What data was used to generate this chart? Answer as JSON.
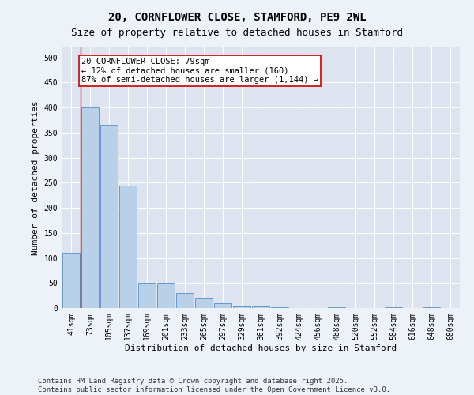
{
  "title": "20, CORNFLOWER CLOSE, STAMFORD, PE9 2WL",
  "subtitle": "Size of property relative to detached houses in Stamford",
  "xlabel": "Distribution of detached houses by size in Stamford",
  "ylabel": "Number of detached properties",
  "categories": [
    "41sqm",
    "73sqm",
    "105sqm",
    "137sqm",
    "169sqm",
    "201sqm",
    "233sqm",
    "265sqm",
    "297sqm",
    "329sqm",
    "361sqm",
    "392sqm",
    "424sqm",
    "456sqm",
    "488sqm",
    "520sqm",
    "552sqm",
    "584sqm",
    "616sqm",
    "648sqm",
    "680sqm"
  ],
  "values": [
    110,
    400,
    365,
    245,
    50,
    50,
    30,
    20,
    10,
    5,
    5,
    2,
    0,
    0,
    1,
    0,
    0,
    1,
    0,
    1,
    0
  ],
  "bar_color": "#b8d0e8",
  "bar_edge_color": "#6699cc",
  "vline_color": "#cc0000",
  "annotation_text": "20 CORNFLOWER CLOSE: 79sqm\n← 12% of detached houses are smaller (160)\n87% of semi-detached houses are larger (1,144) →",
  "annotation_box_color": "#ffffff",
  "annotation_box_edge": "#cc0000",
  "ylim": [
    0,
    520
  ],
  "yticks": [
    0,
    50,
    100,
    150,
    200,
    250,
    300,
    350,
    400,
    450,
    500
  ],
  "background_color": "#dde4f0",
  "grid_color": "#ffffff",
  "fig_bg_color": "#edf1f8",
  "footer": "Contains HM Land Registry data © Crown copyright and database right 2025.\nContains public sector information licensed under the Open Government Licence v3.0.",
  "title_fontsize": 10,
  "subtitle_fontsize": 9,
  "axis_label_fontsize": 8,
  "tick_fontsize": 7,
  "footer_fontsize": 6.5,
  "annot_fontsize": 7.5
}
